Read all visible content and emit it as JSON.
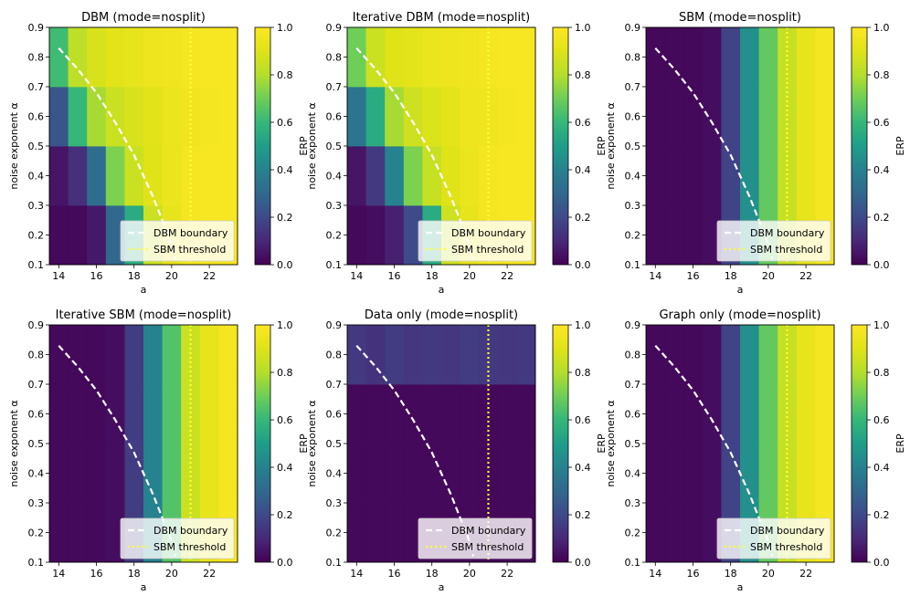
{
  "figure": {
    "colorbar_label": "ERP",
    "colorbar_ticks": [
      "0.0",
      "0.2",
      "0.4",
      "0.6",
      "0.8",
      "1.0"
    ],
    "legend": {
      "boundary_label": "DBM boundary",
      "threshold_label": "SBM threshold"
    },
    "colors": {
      "boundary": "#ffffff",
      "threshold": "#ffff33",
      "colormap": "viridis"
    }
  },
  "chart_data": [
    {
      "type": "heatmap",
      "title": "DBM (mode=nosplit)",
      "xlabel": "a",
      "ylabel": "noise exponent α",
      "x_ticks": [
        "14",
        "16",
        "18",
        "20",
        "22"
      ],
      "y_ticks": [
        "0.1",
        "0.2",
        "0.3",
        "0.4",
        "0.5",
        "0.6",
        "0.7",
        "0.8",
        "0.9"
      ],
      "xlim": [
        13.5,
        23.5
      ],
      "ylim": [
        0.1,
        0.9
      ],
      "clim": [
        0,
        1
      ],
      "a_values": [
        14,
        15,
        16,
        17,
        18,
        19,
        20,
        21,
        22,
        23
      ],
      "alpha_rows": [
        [
          0.1,
          0.3
        ],
        [
          0.3,
          0.5
        ],
        [
          0.5,
          0.7
        ],
        [
          0.7,
          0.9
        ]
      ],
      "values": [
        [
          0.02,
          0.02,
          0.06,
          0.3,
          0.55,
          0.85,
          0.93,
          0.97,
          0.98,
          0.98
        ],
        [
          0.05,
          0.12,
          0.32,
          0.72,
          0.85,
          0.9,
          0.94,
          0.97,
          0.98,
          0.98
        ],
        [
          0.24,
          0.6,
          0.78,
          0.85,
          0.88,
          0.91,
          0.94,
          0.96,
          0.97,
          0.98
        ],
        [
          0.62,
          0.82,
          0.88,
          0.91,
          0.93,
          0.95,
          0.96,
          0.97,
          0.98,
          0.98
        ]
      ],
      "legend_position": "lower-right"
    },
    {
      "type": "heatmap",
      "title": "Iterative DBM (mode=nosplit)",
      "xlabel": "a",
      "ylabel": "noise exponent α",
      "x_ticks": [
        "14",
        "16",
        "18",
        "20",
        "22"
      ],
      "y_ticks": [
        "0.1",
        "0.2",
        "0.3",
        "0.4",
        "0.5",
        "0.6",
        "0.7",
        "0.8",
        "0.9"
      ],
      "xlim": [
        13.5,
        23.5
      ],
      "ylim": [
        0.1,
        0.9
      ],
      "clim": [
        0,
        1
      ],
      "a_values": [
        14,
        15,
        16,
        17,
        18,
        19,
        20,
        21,
        22,
        23
      ],
      "alpha_rows": [
        [
          0.1,
          0.3
        ],
        [
          0.3,
          0.5
        ],
        [
          0.5,
          0.7
        ],
        [
          0.7,
          0.9
        ]
      ],
      "values": [
        [
          0.02,
          0.03,
          0.08,
          0.2,
          0.55,
          0.86,
          0.93,
          0.97,
          0.98,
          0.98
        ],
        [
          0.05,
          0.15,
          0.4,
          0.72,
          0.84,
          0.9,
          0.94,
          0.97,
          0.98,
          0.98
        ],
        [
          0.35,
          0.55,
          0.78,
          0.86,
          0.89,
          0.92,
          0.95,
          0.96,
          0.97,
          0.98
        ],
        [
          0.7,
          0.85,
          0.9,
          0.92,
          0.94,
          0.95,
          0.96,
          0.97,
          0.98,
          0.98
        ]
      ],
      "legend_position": "lower-right"
    },
    {
      "type": "heatmap",
      "title": "SBM (mode=nosplit)",
      "xlabel": "a",
      "ylabel": "noise exponent α",
      "x_ticks": [
        "14",
        "16",
        "18",
        "20",
        "22"
      ],
      "y_ticks": [
        "0.1",
        "0.2",
        "0.3",
        "0.4",
        "0.5",
        "0.6",
        "0.7",
        "0.8",
        "0.9"
      ],
      "xlim": [
        13.5,
        23.5
      ],
      "ylim": [
        0.1,
        0.9
      ],
      "clim": [
        0,
        1
      ],
      "a_values": [
        14,
        15,
        16,
        17,
        18,
        19,
        20,
        21,
        22,
        23
      ],
      "alpha_rows": [
        [
          0.1,
          0.3
        ],
        [
          0.3,
          0.5
        ],
        [
          0.5,
          0.7
        ],
        [
          0.7,
          0.9
        ]
      ],
      "values": [
        [
          0.02,
          0.02,
          0.02,
          0.03,
          0.18,
          0.45,
          0.68,
          0.84,
          0.93,
          0.97
        ],
        [
          0.02,
          0.02,
          0.02,
          0.03,
          0.18,
          0.45,
          0.68,
          0.84,
          0.93,
          0.97
        ],
        [
          0.02,
          0.02,
          0.02,
          0.03,
          0.18,
          0.45,
          0.68,
          0.84,
          0.93,
          0.97
        ],
        [
          0.02,
          0.02,
          0.02,
          0.03,
          0.18,
          0.45,
          0.68,
          0.84,
          0.93,
          0.97
        ]
      ],
      "legend_position": "lower-right"
    },
    {
      "type": "heatmap",
      "title": "Iterative SBM (mode=nosplit)",
      "xlabel": "a",
      "ylabel": "noise exponent α",
      "x_ticks": [
        "14",
        "16",
        "18",
        "20",
        "22"
      ],
      "y_ticks": [
        "0.1",
        "0.2",
        "0.3",
        "0.4",
        "0.5",
        "0.6",
        "0.7",
        "0.8",
        "0.9"
      ],
      "xlim": [
        13.5,
        23.5
      ],
      "ylim": [
        0.1,
        0.9
      ],
      "clim": [
        0,
        1
      ],
      "a_values": [
        14,
        15,
        16,
        17,
        18,
        19,
        20,
        21,
        22,
        23
      ],
      "alpha_rows": [
        [
          0.1,
          0.3
        ],
        [
          0.3,
          0.5
        ],
        [
          0.5,
          0.7
        ],
        [
          0.7,
          0.9
        ]
      ],
      "values": [
        [
          0.02,
          0.02,
          0.02,
          0.03,
          0.16,
          0.4,
          0.65,
          0.85,
          0.93,
          0.97
        ],
        [
          0.02,
          0.02,
          0.02,
          0.03,
          0.16,
          0.4,
          0.65,
          0.85,
          0.93,
          0.97
        ],
        [
          0.02,
          0.02,
          0.02,
          0.03,
          0.16,
          0.4,
          0.65,
          0.85,
          0.93,
          0.97
        ],
        [
          0.02,
          0.02,
          0.02,
          0.03,
          0.16,
          0.4,
          0.65,
          0.85,
          0.93,
          0.97
        ]
      ],
      "legend_position": "lower-right"
    },
    {
      "type": "heatmap",
      "title": "Data only (mode=nosplit)",
      "xlabel": "a",
      "ylabel": "noise exponent α",
      "x_ticks": [
        "14",
        "16",
        "18",
        "20",
        "22"
      ],
      "y_ticks": [
        "0.1",
        "0.2",
        "0.3",
        "0.4",
        "0.5",
        "0.6",
        "0.7",
        "0.8",
        "0.9"
      ],
      "xlim": [
        13.5,
        23.5
      ],
      "ylim": [
        0.1,
        0.9
      ],
      "clim": [
        0,
        1
      ],
      "a_values": [
        14,
        15,
        16,
        17,
        18,
        19,
        20,
        21,
        22,
        23
      ],
      "alpha_rows": [
        [
          0.1,
          0.3
        ],
        [
          0.3,
          0.5
        ],
        [
          0.5,
          0.7
        ],
        [
          0.7,
          0.9
        ]
      ],
      "values": [
        [
          0.02,
          0.02,
          0.02,
          0.02,
          0.02,
          0.02,
          0.02,
          0.02,
          0.02,
          0.02
        ],
        [
          0.02,
          0.02,
          0.02,
          0.02,
          0.02,
          0.02,
          0.02,
          0.02,
          0.02,
          0.02
        ],
        [
          0.02,
          0.02,
          0.02,
          0.02,
          0.02,
          0.02,
          0.02,
          0.02,
          0.02,
          0.02
        ],
        [
          0.15,
          0.13,
          0.16,
          0.14,
          0.15,
          0.14,
          0.16,
          0.15,
          0.14,
          0.15
        ]
      ],
      "legend_position": "lower-right"
    },
    {
      "type": "heatmap",
      "title": "Graph only (mode=nosplit)",
      "xlabel": "a",
      "ylabel": "noise exponent α",
      "x_ticks": [
        "14",
        "16",
        "18",
        "20",
        "22"
      ],
      "y_ticks": [
        "0.1",
        "0.2",
        "0.3",
        "0.4",
        "0.5",
        "0.6",
        "0.7",
        "0.8",
        "0.9"
      ],
      "xlim": [
        13.5,
        23.5
      ],
      "ylim": [
        0.1,
        0.9
      ],
      "clim": [
        0,
        1
      ],
      "a_values": [
        14,
        15,
        16,
        17,
        18,
        19,
        20,
        21,
        22,
        23
      ],
      "alpha_rows": [
        [
          0.1,
          0.3
        ],
        [
          0.3,
          0.5
        ],
        [
          0.5,
          0.7
        ],
        [
          0.7,
          0.9
        ]
      ],
      "values": [
        [
          0.02,
          0.02,
          0.02,
          0.03,
          0.18,
          0.45,
          0.68,
          0.84,
          0.93,
          0.97
        ],
        [
          0.02,
          0.02,
          0.02,
          0.03,
          0.18,
          0.45,
          0.68,
          0.84,
          0.93,
          0.97
        ],
        [
          0.02,
          0.02,
          0.02,
          0.03,
          0.18,
          0.45,
          0.68,
          0.84,
          0.93,
          0.97
        ],
        [
          0.02,
          0.02,
          0.02,
          0.03,
          0.18,
          0.45,
          0.68,
          0.84,
          0.93,
          0.97
        ]
      ],
      "legend_position": "lower-right"
    }
  ],
  "overlays": {
    "dbm_boundary": {
      "a": [
        14.0,
        15.0,
        16.0,
        17.0,
        18.0,
        19.0,
        20.0,
        20.2
      ],
      "alpha": [
        0.83,
        0.76,
        0.68,
        0.58,
        0.47,
        0.33,
        0.17,
        0.12
      ]
    },
    "sbm_threshold_a": 21.0
  }
}
